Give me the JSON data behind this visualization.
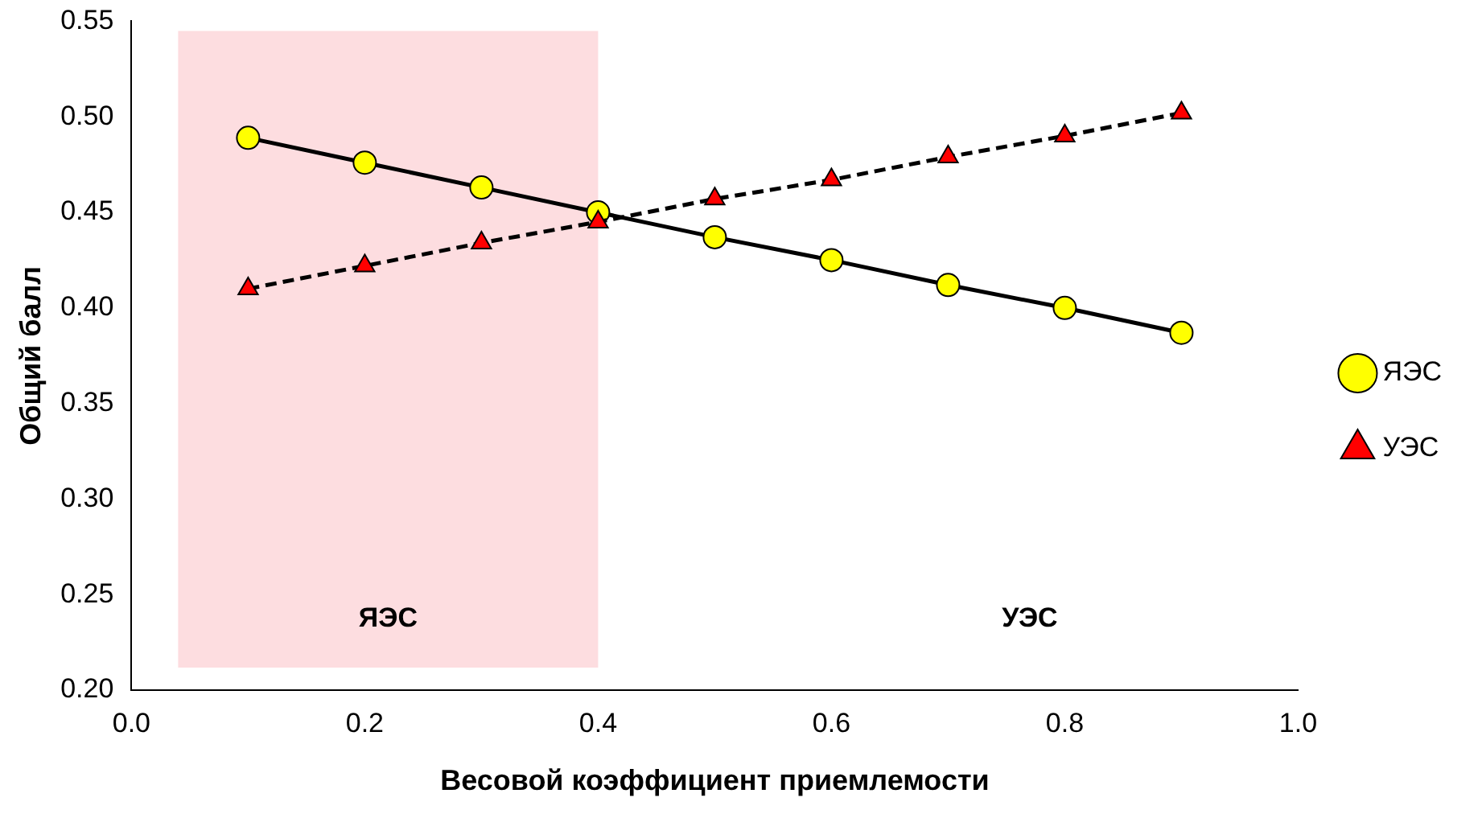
{
  "chart_data": {
    "type": "line",
    "xlabel": "Весовой коэффициент приемлемости",
    "ylabel": "Общий балл",
    "x": [
      0.1,
      0.2,
      0.3,
      0.4,
      0.5,
      0.6,
      0.7,
      0.8,
      0.9
    ],
    "series": [
      {
        "name": "ЯЭС",
        "color": "#ffff00",
        "marker": "circle",
        "line_style": "solid",
        "values": [
          0.489,
          0.476,
          0.463,
          0.45,
          0.437,
          0.425,
          0.412,
          0.4,
          0.387
        ]
      },
      {
        "name": "УЭС",
        "color": "#ff0000",
        "marker": "triangle",
        "line_style": "dashed",
        "values": [
          0.41,
          0.422,
          0.434,
          0.445,
          0.457,
          0.467,
          0.479,
          0.49,
          0.502
        ]
      }
    ],
    "xlim": [
      0,
      1
    ],
    "xticks": [
      {
        "value": 0,
        "label": "0.0"
      },
      {
        "value": 0.2,
        "label": "0.2"
      },
      {
        "value": 0.4,
        "label": "0.4"
      },
      {
        "value": 0.6,
        "label": "0.6"
      },
      {
        "value": 0.8,
        "label": "0.8"
      },
      {
        "value": 1,
        "label": "1.0"
      }
    ],
    "ylim": [
      0.2,
      0.55
    ],
    "yticks": [
      {
        "value": 0.2,
        "label": "0.20"
      },
      {
        "value": 0.25,
        "label": "0.25"
      },
      {
        "value": 0.3,
        "label": "0.30"
      },
      {
        "value": 0.35,
        "label": "0.35"
      },
      {
        "value": 0.4,
        "label": "0.40"
      },
      {
        "value": 0.45,
        "label": "0.45"
      },
      {
        "value": 0.5,
        "label": "0.50"
      },
      {
        "value": 0.55,
        "label": "0.55"
      }
    ],
    "bands": [
      {
        "axis": "x",
        "from": 0.04,
        "to": 0.4,
        "label": "ЯЭС",
        "color": "#fddde0"
      }
    ],
    "annotations": [
      "УЭС"
    ],
    "grid": false,
    "legend": "right"
  }
}
